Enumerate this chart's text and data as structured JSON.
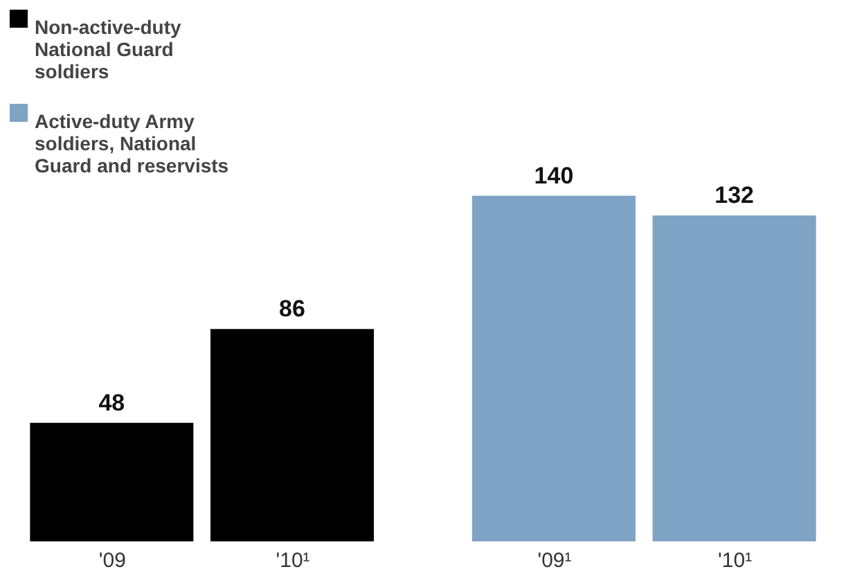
{
  "chart_data": {
    "type": "bar",
    "categories": [
      "'09",
      "'10¹",
      "'09¹",
      "'10¹"
    ],
    "series": [
      {
        "name": "Non-active-duty National Guard soldiers",
        "color": "#000000",
        "values": [
          48,
          86,
          null,
          null
        ]
      },
      {
        "name": "Active-duty Army soldiers, National Guard and reservists",
        "color": "#7fa3c4",
        "values": [
          null,
          null,
          140,
          132
        ]
      }
    ],
    "data_labels": true,
    "legend": "top left",
    "grid": false
  }
}
